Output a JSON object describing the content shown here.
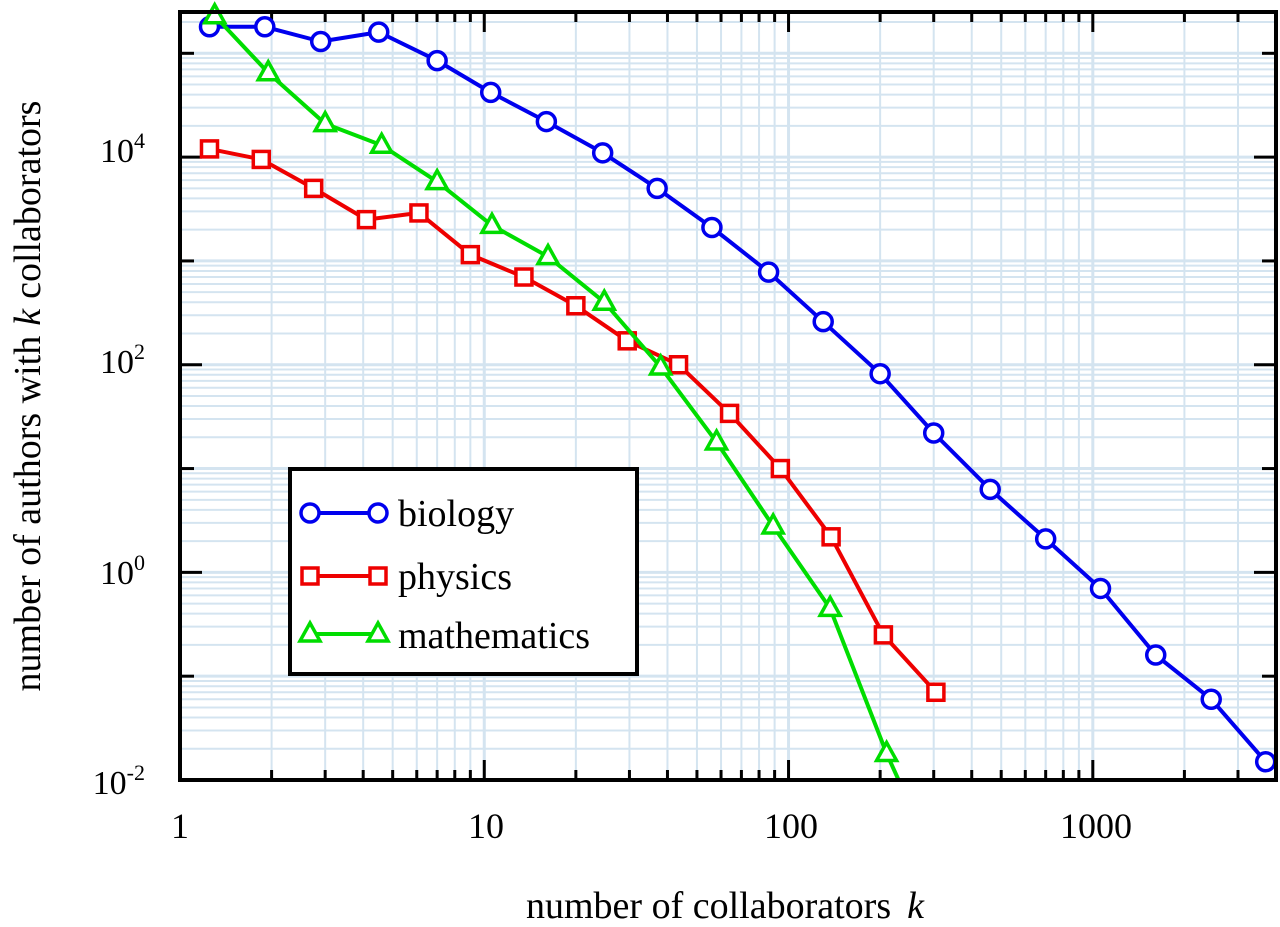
{
  "chart_data": {
    "type": "line",
    "title": "",
    "xlabel_main": "number of collaborators",
    "xlabel_var": "k",
    "ylabel_pre": "number of authors with",
    "ylabel_var": "k",
    "ylabel_post": "collaborators",
    "x_scale": "log",
    "y_scale": "log",
    "xlim": [
      1,
      4000
    ],
    "ylim": [
      0.01,
      250000
    ],
    "grid": true,
    "legend_position": "lower-left",
    "x_ticks": [
      {
        "value": 1,
        "label": "1"
      },
      {
        "value": 10,
        "label": "10"
      },
      {
        "value": 100,
        "label": "100"
      },
      {
        "value": 1000,
        "label": "1000"
      }
    ],
    "y_ticks": [
      {
        "value": 0.01,
        "base": "10",
        "exp": "-2"
      },
      {
        "value": 1,
        "base": "10",
        "exp": "0"
      },
      {
        "value": 100,
        "base": "10",
        "exp": "2"
      },
      {
        "value": 10000,
        "base": "10",
        "exp": "4"
      }
    ],
    "series": [
      {
        "name": "biology",
        "color": "#0000ee",
        "marker": "circle",
        "x": [
          1.25,
          1.9,
          2.9,
          4.5,
          7,
          10.5,
          16,
          24.5,
          37,
          56,
          86,
          130,
          200,
          300,
          460,
          700,
          1060,
          1610,
          2450,
          3700
        ],
        "y": [
          180000,
          180000,
          130000,
          160000,
          85000,
          42000,
          22000,
          11000,
          5000,
          2100,
          780,
          260,
          82,
          22,
          6.3,
          2.1,
          0.7,
          0.16,
          0.06,
          0.015
        ]
      },
      {
        "name": "physics",
        "color": "#ee0000",
        "marker": "square",
        "x": [
          1.25,
          1.85,
          2.75,
          4.1,
          6.1,
          9,
          13.5,
          20,
          29.5,
          43.5,
          64,
          94,
          138,
          205,
          305
        ],
        "y": [
          12000,
          9500,
          5000,
          2500,
          2900,
          1150,
          700,
          370,
          170,
          100,
          34,
          10,
          2.2,
          0.25,
          0.07
        ]
      },
      {
        "name": "mathematics",
        "color": "#00dd00",
        "marker": "triangle",
        "x": [
          1.3,
          1.95,
          3,
          4.6,
          7,
          10.6,
          16.2,
          24.8,
          38,
          58,
          89,
          137,
          210
        ],
        "y": [
          230000,
          65000,
          21000,
          13000,
          5800,
          2200,
          1100,
          400,
          95,
          18,
          2.8,
          0.45,
          0.018
        ]
      }
    ],
    "math_tail": {
      "x": 230,
      "y": 0.01
    }
  }
}
